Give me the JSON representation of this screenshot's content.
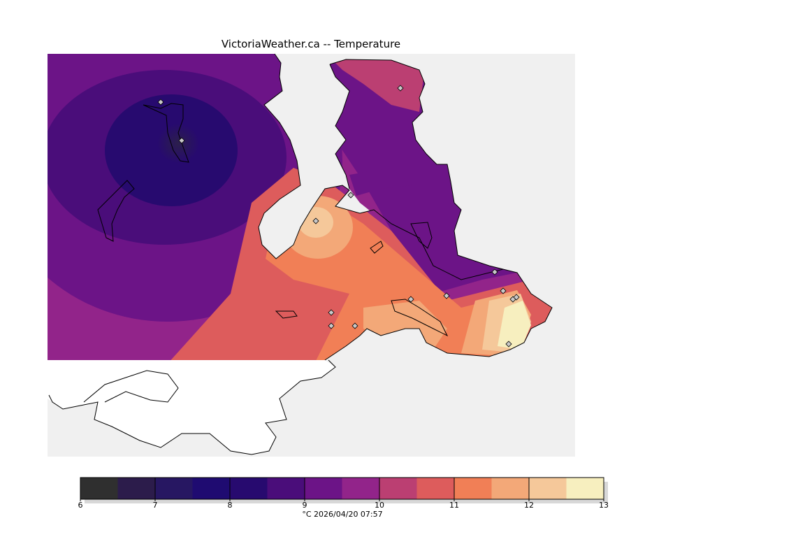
{
  "title": "VictoriaWeather.ca -- Temperature",
  "footer": "°C  2026/04/20 07:57",
  "colorbar": {
    "ticks": [
      "6",
      "7",
      "8",
      "9",
      "10",
      "11",
      "12",
      "13"
    ],
    "bins": [
      {
        "from": 6.0,
        "to": 6.5,
        "color": "#2f2f2f"
      },
      {
        "from": 6.5,
        "to": 7.0,
        "color": "#2c1c4b"
      },
      {
        "from": 7.0,
        "to": 7.5,
        "color": "#271762"
      },
      {
        "from": 7.5,
        "to": 8.0,
        "color": "#1f0b71"
      },
      {
        "from": 8.0,
        "to": 8.5,
        "color": "#270a6f"
      },
      {
        "from": 8.5,
        "to": 9.0,
        "color": "#4a0d7a"
      },
      {
        "from": 9.0,
        "to": 9.5,
        "color": "#6c1487"
      },
      {
        "from": 9.5,
        "to": 10.0,
        "color": "#92248a"
      },
      {
        "from": 10.0,
        "to": 10.5,
        "color": "#bb3f72"
      },
      {
        "from": 10.5,
        "to": 11.0,
        "color": "#dd5c5c"
      },
      {
        "from": 11.0,
        "to": 11.5,
        "color": "#f17f56"
      },
      {
        "from": 11.5,
        "to": 12.0,
        "color": "#f3a878"
      },
      {
        "from": 12.0,
        "to": 12.5,
        "color": "#f5c89a"
      },
      {
        "from": 12.5,
        "to": 13.0,
        "color": "#f7efbf"
      }
    ]
  },
  "colors": {
    "water": "#f0f0f0",
    "land_outside": "#ffffff",
    "coast": "#000000",
    "station": "#c9c9c9"
  }
}
